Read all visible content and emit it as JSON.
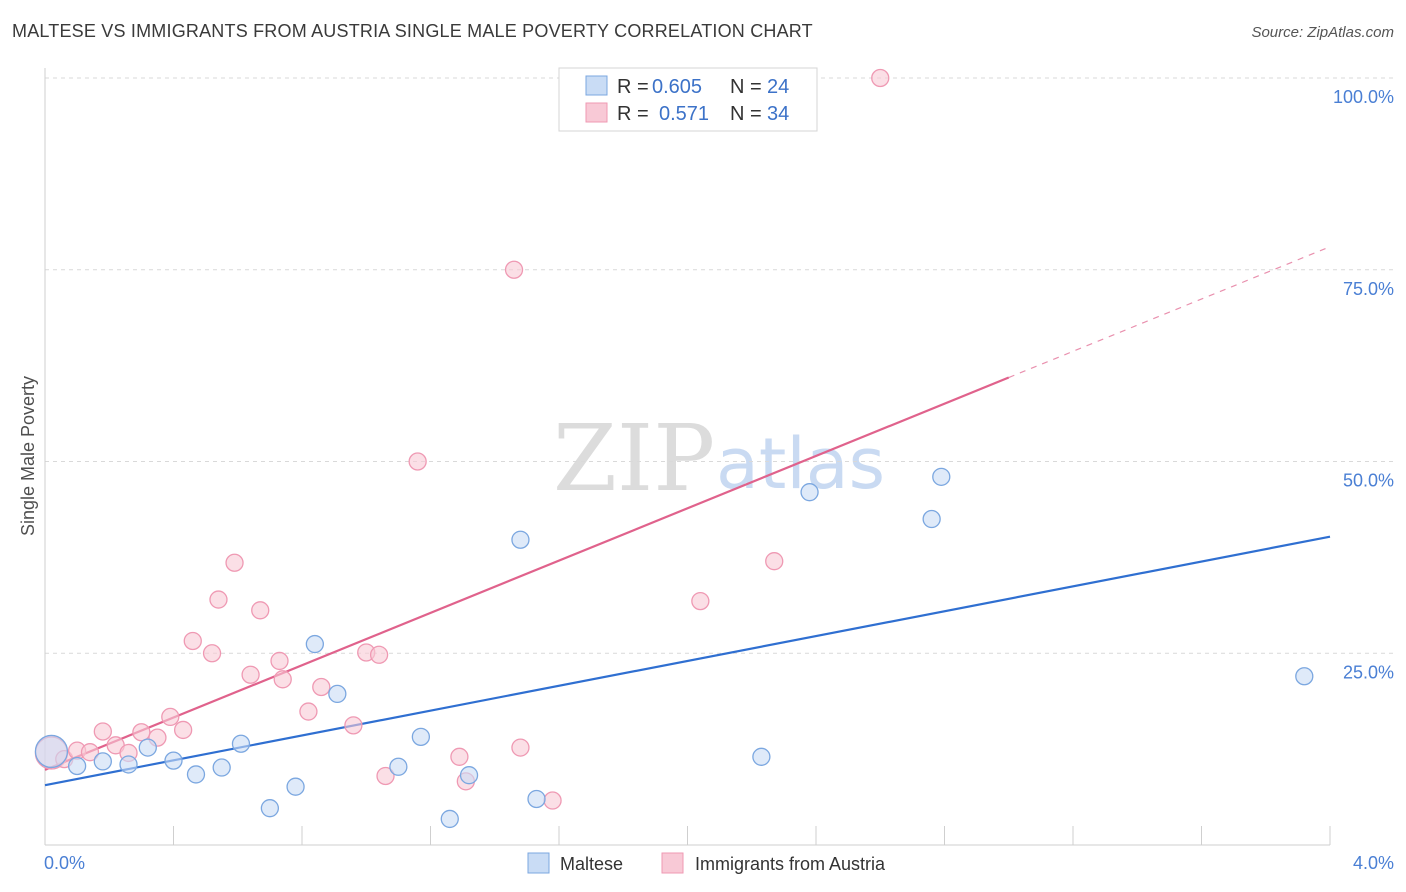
{
  "header": {
    "title": "MALTESE VS IMMIGRANTS FROM AUSTRIA SINGLE MALE POVERTY CORRELATION CHART",
    "source": "Source: ZipAtlas.com"
  },
  "watermark": {
    "zip": "ZIP",
    "atlas": "atlas"
  },
  "colors": {
    "maltese_fill": "#c9dcf5",
    "maltese_stroke": "#7ba7e0",
    "maltese_line": "#2f6fd1",
    "austria_fill": "#f8c9d6",
    "austria_stroke": "#ef99b3",
    "austria_line": "#e0628c",
    "grid": "#d9d9d9",
    "tick_text": "#4a7fd4"
  },
  "legend": {
    "rows": [
      {
        "r_label": "R =",
        "r_value": "0.605",
        "n_label": "N =",
        "n_value": "24"
      },
      {
        "r_label": "R =",
        "r_value": "0.571",
        "n_label": "N =",
        "n_value": "34"
      }
    ]
  },
  "chart_data": {
    "type": "scatter",
    "title": "MALTESE VS IMMIGRANTS FROM AUSTRIA SINGLE MALE POVERTY CORRELATION CHART",
    "xlabel": "",
    "ylabel": "Single Male Poverty",
    "xlim": [
      0,
      4
    ],
    "ylim": [
      0,
      100
    ],
    "x_tick_labels": [
      "0.0%",
      "4.0%"
    ],
    "y_tick_values": [
      25,
      50,
      75,
      100
    ],
    "y_tick_labels": [
      "25.0%",
      "50.0%",
      "75.0%",
      "100.0%"
    ],
    "legend_position": "top-center",
    "series": [
      {
        "name": "Maltese",
        "r": 0.605,
        "n": 24,
        "trend": {
          "x0": 0,
          "y0": 7.8,
          "x1": 4.0,
          "y1": 40.2,
          "solid_until": 4.0
        },
        "points": [
          {
            "x": 0.02,
            "y": 12.2,
            "big": true
          },
          {
            "x": 0.1,
            "y": 10.3
          },
          {
            "x": 0.18,
            "y": 10.9
          },
          {
            "x": 0.26,
            "y": 10.5
          },
          {
            "x": 0.32,
            "y": 12.7
          },
          {
            "x": 0.4,
            "y": 11.0
          },
          {
            "x": 0.47,
            "y": 9.2
          },
          {
            "x": 0.55,
            "y": 10.1
          },
          {
            "x": 0.61,
            "y": 13.2
          },
          {
            "x": 0.7,
            "y": 4.8
          },
          {
            "x": 0.78,
            "y": 7.6
          },
          {
            "x": 0.84,
            "y": 26.2
          },
          {
            "x": 0.91,
            "y": 19.7
          },
          {
            "x": 1.1,
            "y": 10.2
          },
          {
            "x": 1.17,
            "y": 14.1
          },
          {
            "x": 1.26,
            "y": 3.4
          },
          {
            "x": 1.32,
            "y": 9.1
          },
          {
            "x": 1.48,
            "y": 39.8
          },
          {
            "x": 1.53,
            "y": 6.0
          },
          {
            "x": 2.23,
            "y": 11.5
          },
          {
            "x": 2.38,
            "y": 46.0
          },
          {
            "x": 2.76,
            "y": 42.5
          },
          {
            "x": 2.79,
            "y": 48.0
          },
          {
            "x": 3.92,
            "y": 22.0
          }
        ]
      },
      {
        "name": "Immigrants from Austria",
        "r": 0.571,
        "n": 34,
        "trend": {
          "x0": 0,
          "y0": 9.8,
          "x1": 4.0,
          "y1": 78.0,
          "solid_until": 3.0
        },
        "points": [
          {
            "x": 0.02,
            "y": 12.0,
            "big": true
          },
          {
            "x": 0.06,
            "y": 11.2
          },
          {
            "x": 0.1,
            "y": 12.3
          },
          {
            "x": 0.14,
            "y": 12.1
          },
          {
            "x": 0.18,
            "y": 14.8
          },
          {
            "x": 0.22,
            "y": 13.0
          },
          {
            "x": 0.26,
            "y": 12.0
          },
          {
            "x": 0.3,
            "y": 14.7
          },
          {
            "x": 0.35,
            "y": 14.0
          },
          {
            "x": 0.39,
            "y": 16.7
          },
          {
            "x": 0.43,
            "y": 15.0
          },
          {
            "x": 0.46,
            "y": 26.6
          },
          {
            "x": 0.52,
            "y": 25.0
          },
          {
            "x": 0.54,
            "y": 32.0
          },
          {
            "x": 0.59,
            "y": 36.8
          },
          {
            "x": 0.64,
            "y": 22.2
          },
          {
            "x": 0.67,
            "y": 30.6
          },
          {
            "x": 0.73,
            "y": 24.0
          },
          {
            "x": 0.74,
            "y": 21.6
          },
          {
            "x": 0.82,
            "y": 17.4
          },
          {
            "x": 0.86,
            "y": 20.6
          },
          {
            "x": 0.96,
            "y": 15.6
          },
          {
            "x": 1.0,
            "y": 25.1
          },
          {
            "x": 1.04,
            "y": 24.8
          },
          {
            "x": 1.06,
            "y": 9.0
          },
          {
            "x": 1.16,
            "y": 50.0
          },
          {
            "x": 1.29,
            "y": 11.5
          },
          {
            "x": 1.31,
            "y": 8.3
          },
          {
            "x": 1.46,
            "y": 75.0
          },
          {
            "x": 1.48,
            "y": 12.7
          },
          {
            "x": 1.58,
            "y": 5.8
          },
          {
            "x": 2.04,
            "y": 31.8
          },
          {
            "x": 2.27,
            "y": 37.0
          },
          {
            "x": 2.6,
            "y": 100.0
          }
        ]
      }
    ]
  }
}
